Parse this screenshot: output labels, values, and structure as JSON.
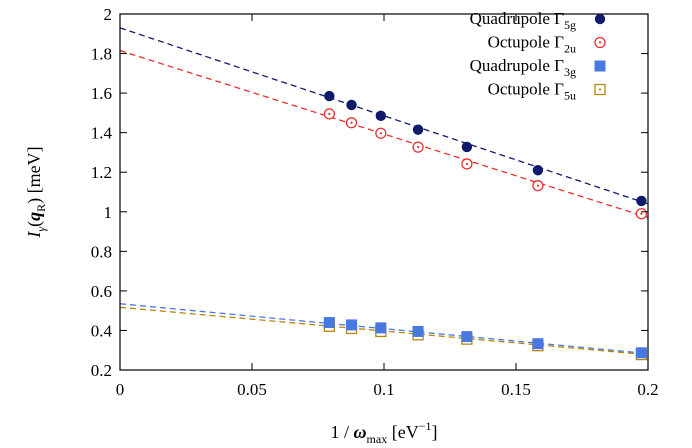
{
  "chart_data": {
    "type": "scatter",
    "xlim": [
      0,
      0.2
    ],
    "ylim": [
      0.2,
      2.0
    ],
    "x_ticks": [
      "0",
      "0.05",
      "0.1",
      "0.15",
      "0.2"
    ],
    "y_ticks": [
      "0.2",
      "0.4",
      "0.6",
      "0.8",
      "1",
      "1.2",
      "1.4",
      "1.6",
      "1.8",
      "2"
    ],
    "xlabel": {
      "prefix": "1 / ",
      "symbol": "ω",
      "sub": "max",
      "unit_open": " [eV",
      "sup": "−1",
      "unit_close": "]"
    },
    "ylabel": {
      "symbol": "I",
      "sub_symbol": "γ",
      "open": "(",
      "bold": "q",
      "bold_sub": "R",
      "close": ")",
      "unit": " [meV]"
    },
    "grid": false,
    "legend_position": "top-right",
    "x": [
      0.0793,
      0.0877,
      0.0988,
      0.1129,
      0.1314,
      0.1583,
      0.1975
    ],
    "series": [
      {
        "name": "Quadrupole Γ",
        "name_sub": "5g",
        "marker": "filled-circle",
        "color": "#101a6b",
        "values": [
          1.585,
          1.54,
          1.485,
          1.415,
          1.328,
          1.21,
          1.055
        ],
        "fit": {
          "intercept": 1.93,
          "slope": -4.45,
          "color": "#101a6b"
        }
      },
      {
        "name": "Octupole Γ",
        "name_sub": "2u",
        "marker": "open-circle-dot",
        "color": "#e8302f",
        "values": [
          1.495,
          1.45,
          1.397,
          1.327,
          1.242,
          1.132,
          0.99
        ],
        "fit": {
          "intercept": 1.815,
          "slope": -4.22,
          "color": "#e8302f"
        }
      },
      {
        "name": "Quadrupole Γ",
        "name_sub": "3g",
        "marker": "filled-square",
        "color": "#4a78e3",
        "values": [
          0.44,
          0.428,
          0.413,
          0.395,
          0.369,
          0.333,
          0.287
        ],
        "fit": {
          "intercept": 0.535,
          "slope": -1.26,
          "color": "#4a78e3"
        }
      },
      {
        "name": "Octupole Γ",
        "name_sub": "5u",
        "marker": "open-square-dot",
        "color": "#b8860b",
        "values": [
          0.421,
          0.41,
          0.395,
          0.378,
          0.356,
          0.323,
          0.278
        ],
        "fit": {
          "intercept": 0.517,
          "slope": -1.2,
          "color": "#b8860b"
        }
      }
    ]
  }
}
